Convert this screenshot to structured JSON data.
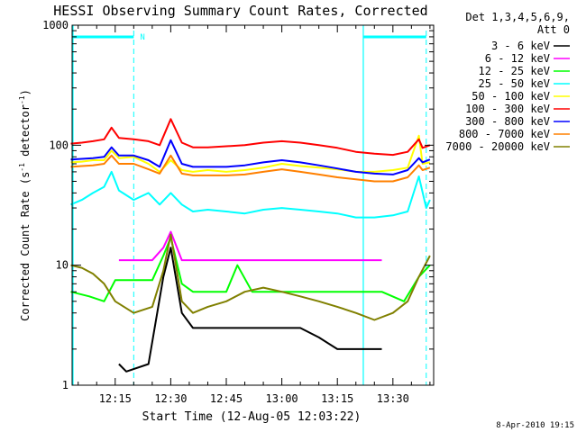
{
  "chart_data": {
    "type": "line",
    "title": "HESSI Observing Summary Count Rates, Corrected",
    "xlabel": "Start Time (12-Aug-05 12:03:22)",
    "ylabel": "Corrected Count Rate (s^-1 detector^-1)",
    "ylabel_parts": {
      "pre": "Corrected Count Rate (s",
      "exp1": "-1",
      "mid": " detector",
      "exp2": "-1",
      "post": ")"
    },
    "yscale": "log",
    "ylim": [
      1,
      1000
    ],
    "xlim": [
      "12:03:22",
      "13:41:00"
    ],
    "x_ticks": [
      "12:15",
      "12:30",
      "12:45",
      "13:00",
      "13:15",
      "13:30"
    ],
    "y_ticks": [
      "1",
      "10",
      "100",
      "1000"
    ],
    "legend_title": [
      "Det 1,3,4,5,6,9,",
      "Att 0"
    ],
    "legend_position": "right",
    "footer_date": "8-Apr-2010 19:15",
    "night_label": "N",
    "orbit_markers": {
      "night_start": "12:20",
      "night_end": "13:22",
      "saa_start": "13:22",
      "saa_end": "13:39"
    },
    "series": [
      {
        "name": "3 - 6 keV",
        "color": "#000000",
        "x": [
          "12:16",
          "12:18",
          "12:24",
          "12:28",
          "12:30",
          "12:33",
          "12:36",
          "12:40",
          "12:45",
          "12:50",
          "13:00",
          "13:05",
          "13:10",
          "13:15",
          "13:20",
          "13:25",
          "13:27"
        ],
        "y": [
          1.5,
          1.3,
          1.5,
          8,
          14,
          4,
          3,
          3,
          3,
          3,
          3,
          3,
          2.5,
          2,
          2,
          2,
          2
        ]
      },
      {
        "name": "6 - 12 keV",
        "color": "#ff00ff",
        "x": [
          "12:16",
          "12:20",
          "12:25",
          "12:28",
          "12:30",
          "12:33",
          "12:36",
          "12:40",
          "12:45",
          "12:50",
          "13:00",
          "13:05",
          "13:10",
          "13:15",
          "13:20",
          "13:25",
          "13:27"
        ],
        "y": [
          11,
          11,
          11,
          14,
          19,
          11,
          11,
          11,
          11,
          11,
          11,
          11,
          11,
          11,
          11,
          11,
          11
        ]
      },
      {
        "name": "12 - 25 keV",
        "color": "#00ff00",
        "x": [
          "12:03",
          "12:08",
          "12:12",
          "12:15",
          "12:20",
          "12:25",
          "12:28",
          "12:30",
          "12:33",
          "12:36",
          "12:40",
          "12:45",
          "12:48",
          "12:52",
          "13:00",
          "13:10",
          "13:15",
          "13:20",
          "13:25",
          "13:27",
          "13:33",
          "13:37",
          "13:40"
        ],
        "y": [
          6,
          5.5,
          5,
          7.5,
          7.5,
          7.5,
          12,
          17,
          7,
          6,
          6,
          6,
          10,
          6,
          6,
          6,
          6,
          6,
          6,
          6,
          5,
          8,
          10
        ]
      },
      {
        "name": "25 - 50 keV",
        "color": "#00ffff",
        "x": [
          "12:03",
          "12:06",
          "12:09",
          "12:12",
          "12:14",
          "12:16",
          "12:20",
          "12:24",
          "12:27",
          "12:30",
          "12:33",
          "12:36",
          "12:40",
          "12:45",
          "12:50",
          "12:55",
          "13:00",
          "13:05",
          "13:10",
          "13:15",
          "13:20",
          "13:25",
          "13:30",
          "13:34",
          "13:37",
          "13:39",
          "13:40"
        ],
        "y": [
          32,
          35,
          40,
          45,
          60,
          42,
          35,
          40,
          32,
          40,
          32,
          28,
          29,
          28,
          27,
          29,
          30,
          29,
          28,
          27,
          25,
          25,
          26,
          28,
          55,
          30,
          35
        ]
      },
      {
        "name": "50 - 100 keV",
        "color": "#ffff00",
        "x": [
          "12:03",
          "12:06",
          "12:09",
          "12:12",
          "12:14",
          "12:16",
          "12:20",
          "12:24",
          "12:27",
          "12:30",
          "12:33",
          "12:36",
          "12:40",
          "12:45",
          "12:50",
          "12:55",
          "13:00",
          "13:05",
          "13:10",
          "13:15",
          "13:20",
          "13:25",
          "13:30",
          "13:34",
          "13:37",
          "13:38",
          "13:40"
        ],
        "y": [
          72,
          73,
          75,
          75,
          90,
          78,
          80,
          70,
          60,
          75,
          62,
          60,
          62,
          60,
          62,
          65,
          70,
          67,
          65,
          63,
          60,
          60,
          62,
          65,
          120,
          70,
          72
        ]
      },
      {
        "name": "100 - 300 keV",
        "color": "#ff0000",
        "x": [
          "12:03",
          "12:06",
          "12:09",
          "12:12",
          "12:14",
          "12:16",
          "12:20",
          "12:24",
          "12:27",
          "12:30",
          "12:33",
          "12:36",
          "12:40",
          "12:45",
          "12:50",
          "12:55",
          "13:00",
          "13:05",
          "13:10",
          "13:15",
          "13:20",
          "13:25",
          "13:30",
          "13:34",
          "13:37",
          "13:38",
          "13:40"
        ],
        "y": [
          103,
          105,
          108,
          112,
          140,
          115,
          112,
          108,
          100,
          165,
          105,
          96,
          96,
          98,
          100,
          105,
          108,
          105,
          100,
          95,
          88,
          85,
          83,
          88,
          112,
          95,
          100
        ]
      },
      {
        "name": "300 - 800 keV",
        "color": "#0000ff",
        "x": [
          "12:03",
          "12:06",
          "12:09",
          "12:12",
          "12:14",
          "12:16",
          "12:20",
          "12:24",
          "12:27",
          "12:30",
          "12:33",
          "12:36",
          "12:40",
          "12:45",
          "12:50",
          "12:55",
          "13:00",
          "13:05",
          "13:10",
          "13:15",
          "13:20",
          "13:25",
          "13:30",
          "13:34",
          "13:37",
          "13:38",
          "13:40"
        ],
        "y": [
          76,
          77,
          78,
          80,
          96,
          82,
          82,
          75,
          66,
          110,
          70,
          66,
          66,
          66,
          68,
          72,
          75,
          72,
          68,
          64,
          60,
          58,
          57,
          62,
          78,
          72,
          76
        ]
      },
      {
        "name": "800 - 7000 keV",
        "color": "#ff8000",
        "x": [
          "12:03",
          "12:06",
          "12:09",
          "12:12",
          "12:14",
          "12:16",
          "12:20",
          "12:24",
          "12:27",
          "12:30",
          "12:33",
          "12:36",
          "12:40",
          "12:45",
          "12:50",
          "12:55",
          "13:00",
          "13:05",
          "13:10",
          "13:15",
          "13:20",
          "13:25",
          "13:30",
          "13:34",
          "13:37",
          "13:38",
          "13:40"
        ],
        "y": [
          66,
          67,
          68,
          70,
          82,
          70,
          70,
          63,
          58,
          82,
          58,
          56,
          56,
          56,
          57,
          60,
          63,
          60,
          57,
          54,
          52,
          50,
          50,
          54,
          68,
          62,
          65
        ]
      },
      {
        "name": "7000 - 20000 keV",
        "color": "#808000",
        "x": [
          "12:03",
          "12:06",
          "12:09",
          "12:12",
          "12:15",
          "12:20",
          "12:25",
          "12:28",
          "12:30",
          "12:33",
          "12:36",
          "12:40",
          "12:45",
          "12:50",
          "12:55",
          "13:00",
          "13:05",
          "13:10",
          "13:15",
          "13:20",
          "13:25",
          "13:30",
          "13:34",
          "13:37",
          "13:40"
        ],
        "y": [
          10,
          9.5,
          8.5,
          7,
          5,
          4,
          4.5,
          9,
          18,
          5,
          4,
          4.5,
          5,
          6,
          6.5,
          6,
          5.5,
          5,
          4.5,
          4,
          3.5,
          4,
          5,
          8,
          12
        ]
      }
    ]
  }
}
